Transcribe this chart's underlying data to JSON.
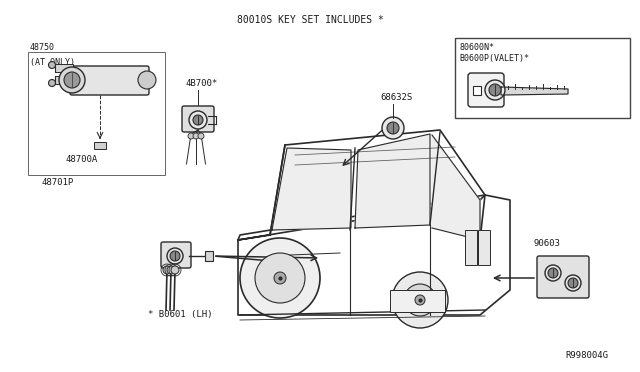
{
  "title": "80010S KEY SET INCLUDES *",
  "bg_color": "#ffffff",
  "lc": "#2a2a2a",
  "tc": "#1a1a1a",
  "diagram_id": "R998004G",
  "figsize": [
    6.4,
    3.72
  ],
  "dpi": 100,
  "labels": {
    "part_48750": "48750",
    "part_at_only": "(AT ONLY)",
    "part_4b700a": "48700A",
    "part_48701p": "48701P",
    "part_4b700": "4B700*",
    "part_b0601": "* B0601 (LH)",
    "part_90603": "90603",
    "part_68632s": "68632S",
    "key_box_1": "80600N*",
    "key_box_2": "B0600P(VALET)*",
    "diagram_ref": "R998004G"
  }
}
